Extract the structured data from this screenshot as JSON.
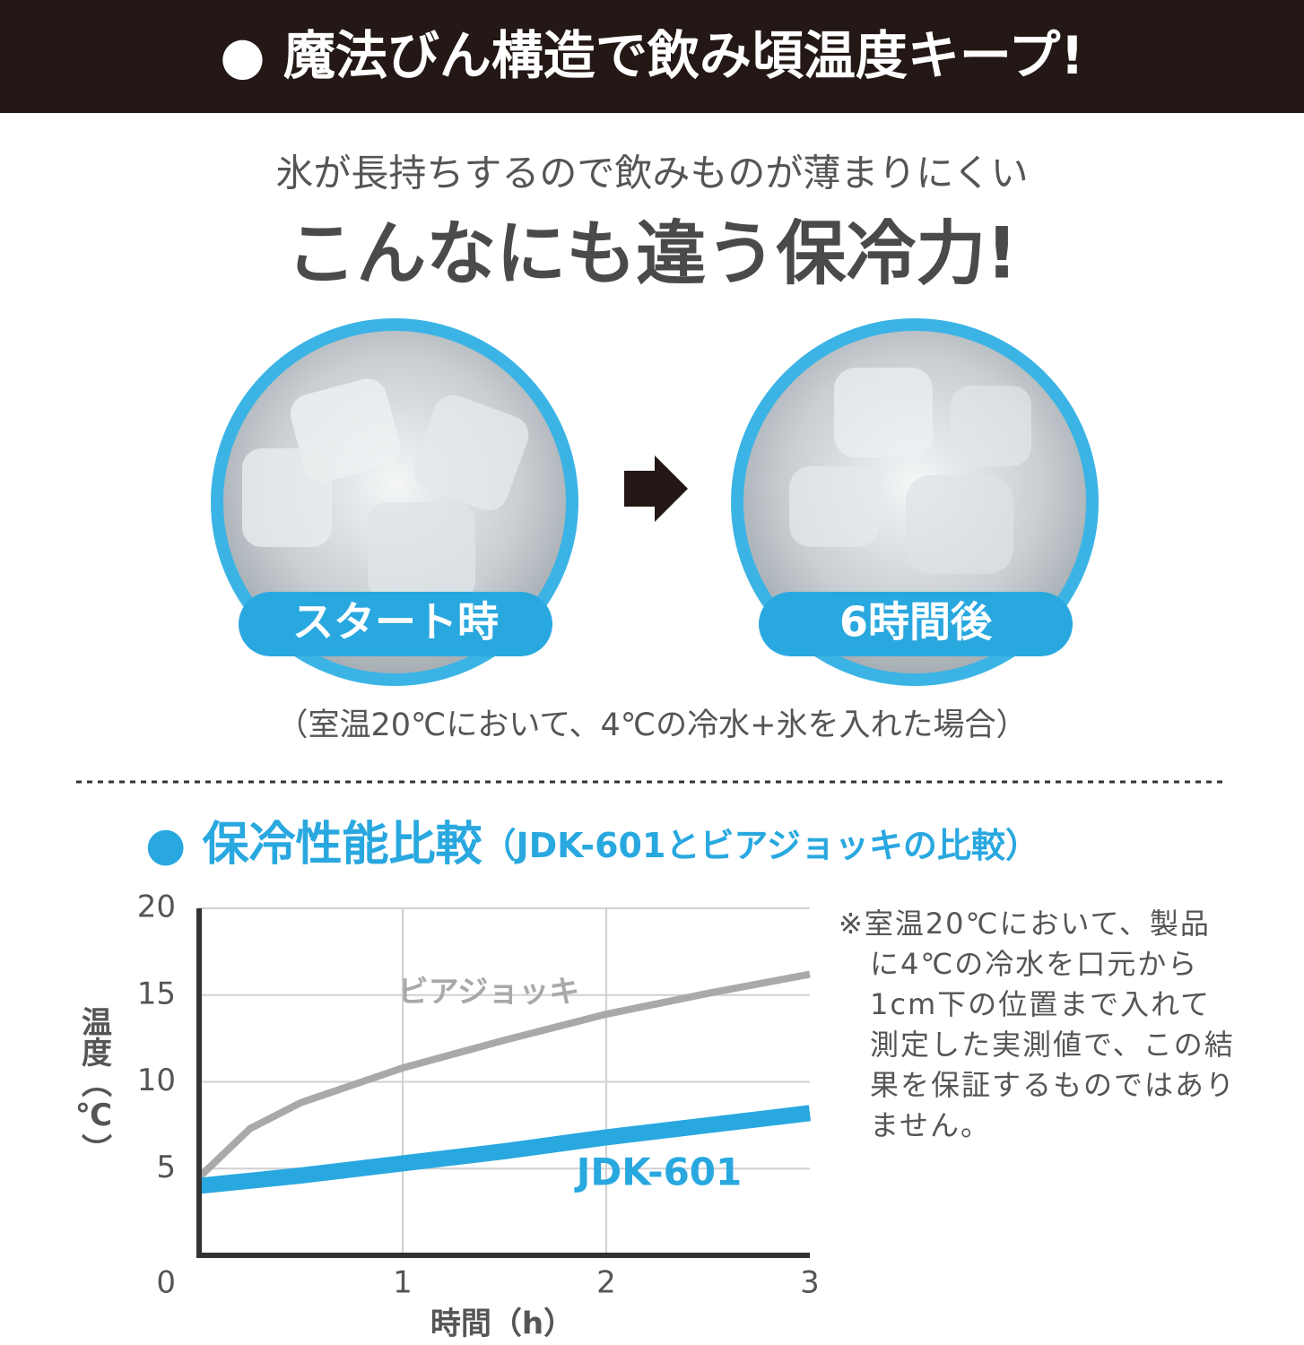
{
  "header": {
    "title": "● 魔法びん構造で飲み頃温度キープ!"
  },
  "intro": {
    "subtitle": "氷が長持ちするので飲みものが薄まりにくい",
    "headline": "こんなにも違う保冷力!",
    "before_label": "スタート時",
    "after_label": "6時間後",
    "condition": "（室温20℃において、4℃の冷水+氷を入れた場合）"
  },
  "chart_data": {
    "type": "line",
    "title": "● 保冷性能比較",
    "subtitle": "（JDK-601とビアジョッキの比較）",
    "x_label": "時間（h）",
    "y_label": "温度（℃）",
    "x": [
      0,
      0.25,
      0.5,
      1,
      1.5,
      2,
      2.5,
      3
    ],
    "series": [
      {
        "name": "ビアジョッキ",
        "color": "#a9a9a9",
        "values": [
          4.5,
          7.3,
          8.8,
          10.8,
          12.4,
          13.9,
          15.1,
          16.2
        ]
      },
      {
        "name": "JDK-601",
        "color": "#29a8e0",
        "values": [
          4.0,
          4.3,
          4.6,
          5.3,
          6.0,
          6.8,
          7.5,
          8.2
        ]
      }
    ],
    "xlim": [
      0,
      3
    ],
    "ylim": [
      0,
      20
    ],
    "xticks": [
      1,
      2,
      3
    ],
    "yticks": [
      0,
      5,
      10,
      15,
      20
    ],
    "grid": true,
    "note": [
      "※室温20℃において、製品",
      "に4℃の冷水を口元から",
      "1cm下の位置まで入れて",
      "測定した実測値で、この結",
      "果を保証するものではあり",
      "ません。"
    ]
  }
}
